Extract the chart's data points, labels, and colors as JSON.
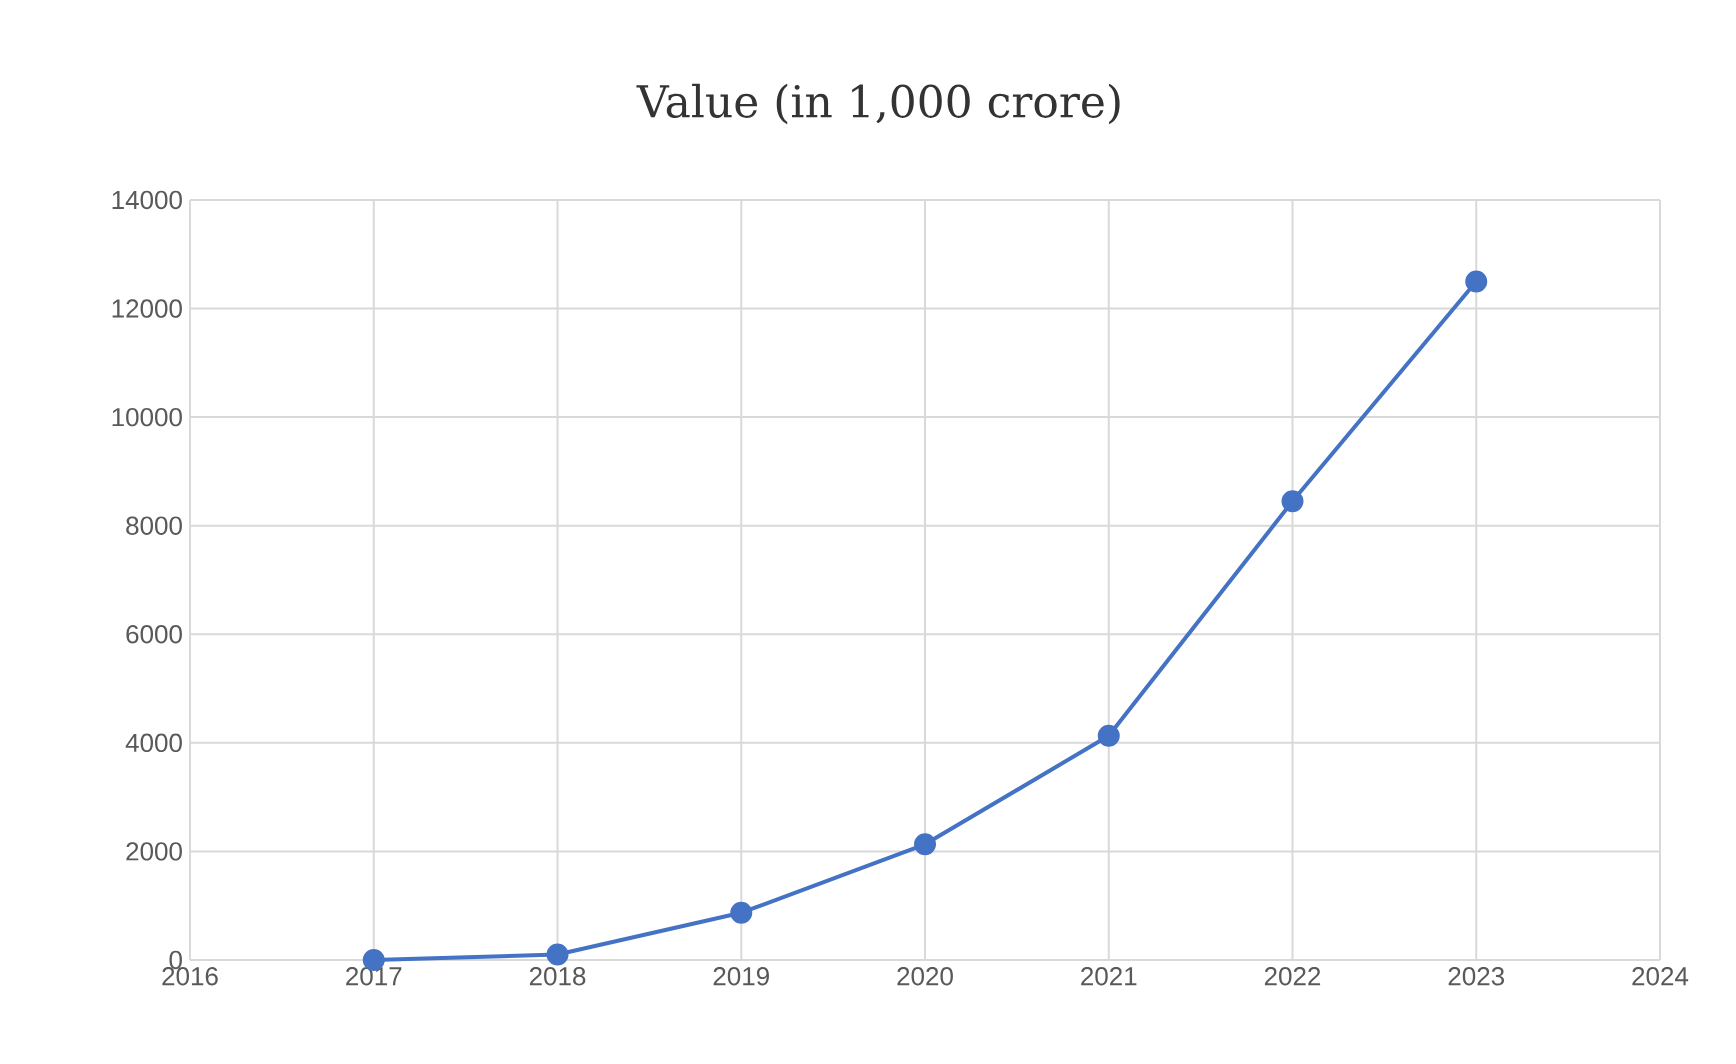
{
  "chart_data": {
    "type": "line",
    "title": "Value (in 1,000 crore)",
    "x": [
      2017,
      2018,
      2019,
      2020,
      2021,
      2022,
      2023
    ],
    "series": [
      {
        "color": "#4472c4",
        "values": [
          0,
          100,
          870,
          2130,
          4130,
          8450,
          12500
        ]
      }
    ],
    "xlim": [
      2016,
      2024
    ],
    "xticks": [
      2016,
      2017,
      2018,
      2019,
      2020,
      2021,
      2022,
      2023,
      2024
    ],
    "ylim": [
      0,
      14000
    ],
    "yticks": [
      0,
      2000,
      4000,
      6000,
      8000,
      10000,
      12000,
      14000
    ],
    "grid": true,
    "marker": "circle",
    "line_style": "solid"
  }
}
